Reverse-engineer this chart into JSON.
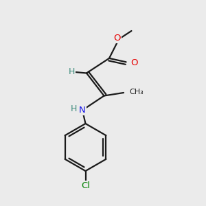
{
  "background_color": "#ebebeb",
  "bond_color": "#1a1a1a",
  "atom_colors": {
    "O": "#e60000",
    "N": "#1414e6",
    "Cl": "#008000",
    "C": "#1a1a1a",
    "H": "#3a8a7a"
  },
  "figsize": [
    3.0,
    3.0
  ],
  "dpi": 100
}
